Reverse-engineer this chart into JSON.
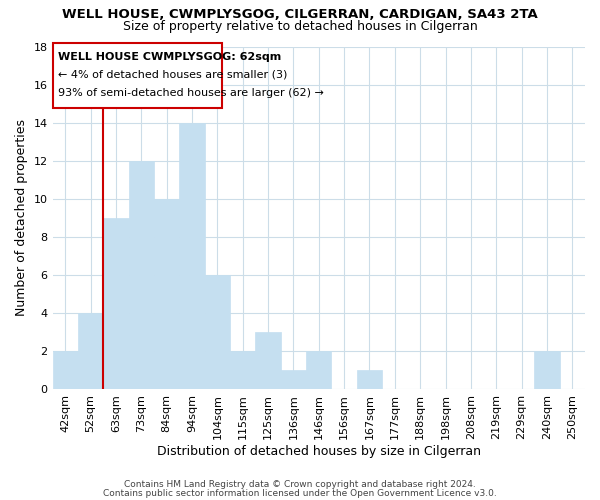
{
  "title": "WELL HOUSE, CWMPLYSGOG, CILGERRAN, CARDIGAN, SA43 2TA",
  "subtitle": "Size of property relative to detached houses in Cilgerran",
  "xlabel": "Distribution of detached houses by size in Cilgerran",
  "ylabel": "Number of detached properties",
  "bar_labels": [
    "42sqm",
    "52sqm",
    "63sqm",
    "73sqm",
    "84sqm",
    "94sqm",
    "104sqm",
    "115sqm",
    "125sqm",
    "136sqm",
    "146sqm",
    "156sqm",
    "167sqm",
    "177sqm",
    "188sqm",
    "198sqm",
    "208sqm",
    "219sqm",
    "229sqm",
    "240sqm",
    "250sqm"
  ],
  "bar_values": [
    2,
    4,
    9,
    12,
    10,
    14,
    6,
    2,
    3,
    1,
    2,
    0,
    1,
    0,
    0,
    0,
    0,
    0,
    0,
    2,
    0
  ],
  "bar_color": "#c5dff0",
  "bar_edge_color": "#a0c8e8",
  "highlight_line_color": "#cc0000",
  "annotation_line1": "WELL HOUSE CWMPLYSGOG: 62sqm",
  "annotation_line2": "← 4% of detached houses are smaller (3)",
  "annotation_line3": "93% of semi-detached houses are larger (62) →",
  "ylim": [
    0,
    18
  ],
  "yticks": [
    0,
    2,
    4,
    6,
    8,
    10,
    12,
    14,
    16,
    18
  ],
  "footer_line1": "Contains HM Land Registry data © Crown copyright and database right 2024.",
  "footer_line2": "Contains public sector information licensed under the Open Government Licence v3.0.",
  "background_color": "#ffffff",
  "grid_color": "#ccdde8",
  "title_fontsize": 9.5,
  "subtitle_fontsize": 9,
  "axis_fontsize": 9,
  "tick_fontsize": 8,
  "annotation_fontsize": 8,
  "footer_fontsize": 6.5
}
